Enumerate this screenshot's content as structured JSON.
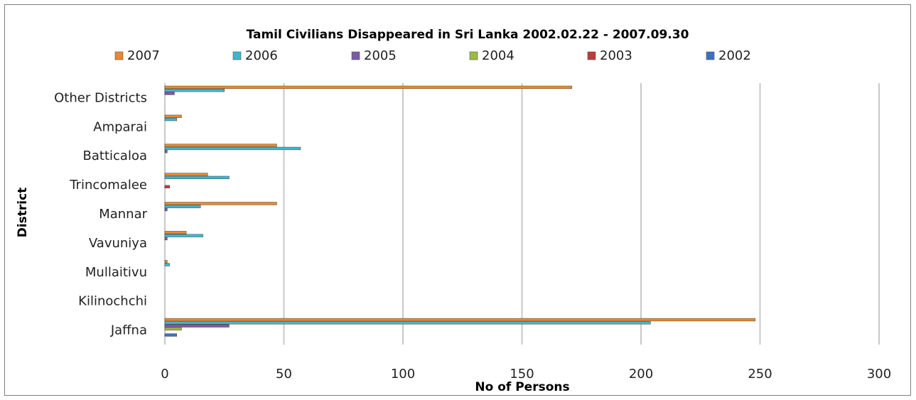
{
  "colors": {
    "2007": "#e8892e",
    "2006": "#3fb6cf",
    "2005": "#7b5aa6",
    "2004": "#9bbb3f",
    "2003": "#c0393b",
    "2002": "#3f6fbf",
    "grid": "#c8c8c8",
    "frame": "#7f7f7f"
  },
  "chart_data": {
    "type": "bar",
    "orientation": "horizontal",
    "title": "Tamil Civilians Disappeared in Sri Lanka 2002.02.22 - 2007.09.30",
    "xlabel": "No of Persons",
    "ylabel": "District",
    "xlim": [
      0,
      300
    ],
    "xticks": [
      0,
      50,
      100,
      150,
      200,
      250,
      300
    ],
    "grid": "vertical",
    "legend_position": "top",
    "categories": [
      "Other Districts",
      "Amparai",
      "Batticaloa",
      "Trincomalee",
      "Mannar",
      "Vavuniya",
      "Mullaitivu",
      "Kilinochchi",
      "Jaffna"
    ],
    "series": [
      {
        "name": "2007",
        "values": [
          171,
          7,
          47,
          18,
          47,
          9,
          1,
          0,
          248
        ]
      },
      {
        "name": "2006",
        "values": [
          25,
          5,
          57,
          27,
          15,
          16,
          2,
          0,
          204
        ]
      },
      {
        "name": "2005",
        "values": [
          4,
          0,
          1,
          0,
          1,
          1,
          0,
          0,
          27
        ]
      },
      {
        "name": "2004",
        "values": [
          0,
          0,
          0,
          0,
          0,
          0,
          0,
          0,
          7
        ]
      },
      {
        "name": "2003",
        "values": [
          0,
          0,
          0,
          2,
          0,
          0,
          0,
          0,
          0
        ]
      },
      {
        "name": "2002",
        "values": [
          0,
          0,
          0,
          0,
          0,
          0,
          0,
          0,
          5
        ]
      }
    ]
  }
}
